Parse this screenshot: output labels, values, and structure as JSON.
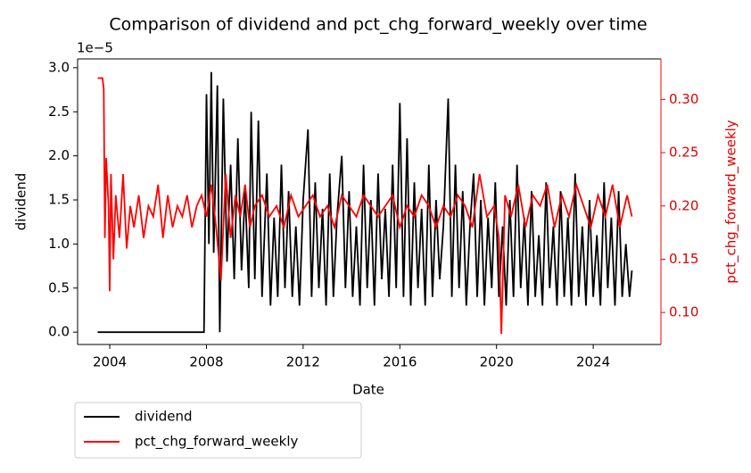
{
  "chart_data": {
    "type": "line",
    "title": "Comparison of dividend and pct_chg_forward_weekly over time",
    "x_label": "Date",
    "y_label": "dividend",
    "y2_label": "pct_chg_forward_weekly",
    "y_offset_label": "1e−5",
    "xlim": [
      2002.67,
      2026.8
    ],
    "ylim": [
      -0.14,
      3.1
    ],
    "y2lim": [
      0.07,
      0.338
    ],
    "xticks": [
      2004,
      2008,
      2012,
      2016,
      2020,
      2024
    ],
    "yticks": [
      {
        "value": 0,
        "label": "0.0"
      },
      {
        "value": 0.5,
        "label": "0.5"
      },
      {
        "value": 1,
        "label": "1.0"
      },
      {
        "value": 1.5,
        "label": "1.5"
      },
      {
        "value": 2,
        "label": "2.0"
      },
      {
        "value": 2.5,
        "label": "2.5"
      },
      {
        "value": 3,
        "label": "3.0"
      }
    ],
    "y2ticks": [
      {
        "value": 0.1,
        "label": "0.10"
      },
      {
        "value": 0.15,
        "label": "0.15"
      },
      {
        "value": 0.2,
        "label": "0.20"
      },
      {
        "value": 0.25,
        "label": "0.25"
      },
      {
        "value": 0.3,
        "label": "0.30"
      }
    ],
    "legend": "below-left",
    "series": [
      {
        "name": "dividend",
        "color": "#000000",
        "x": [
          2003.5,
          2007.9,
          2008.0,
          2008.1,
          2008.2,
          2008.3,
          2008.45,
          2008.55,
          2008.7,
          2008.85,
          2009.0,
          2009.15,
          2009.3,
          2009.45,
          2009.6,
          2009.75,
          2009.85,
          2010.0,
          2010.15,
          2010.3,
          2010.5,
          2010.65,
          2010.8,
          2010.95,
          2011.1,
          2011.25,
          2011.4,
          2011.55,
          2011.7,
          2011.85,
          2012.0,
          2012.2,
          2012.35,
          2012.5,
          2012.65,
          2012.8,
          2012.95,
          2013.1,
          2013.25,
          2013.4,
          2013.6,
          2013.75,
          2013.9,
          2014.05,
          2014.2,
          2014.35,
          2014.5,
          2014.65,
          2014.8,
          2014.95,
          2015.1,
          2015.25,
          2015.4,
          2015.55,
          2015.7,
          2015.85,
          2016.0,
          2016.15,
          2016.3,
          2016.45,
          2016.6,
          2016.75,
          2016.9,
          2017.05,
          2017.2,
          2017.35,
          2017.5,
          2017.65,
          2017.8,
          2018.0,
          2018.15,
          2018.3,
          2018.45,
          2018.6,
          2018.75,
          2018.9,
          2019.05,
          2019.2,
          2019.35,
          2019.5,
          2019.65,
          2019.8,
          2019.95,
          2020.1,
          2020.25,
          2020.4,
          2020.55,
          2020.7,
          2020.85,
          2021.0,
          2021.15,
          2021.3,
          2021.45,
          2021.6,
          2021.75,
          2021.9,
          2022.05,
          2022.2,
          2022.35,
          2022.5,
          2022.65,
          2022.8,
          2022.95,
          2023.1,
          2023.25,
          2023.4,
          2023.55,
          2023.7,
          2023.85,
          2024.0,
          2024.15,
          2024.3,
          2024.45,
          2024.6,
          2024.75,
          2024.9,
          2025.05,
          2025.2,
          2025.35,
          2025.5,
          2025.6
        ],
        "values": [
          0,
          0,
          2.7,
          1.0,
          2.95,
          0.9,
          2.8,
          0.0,
          2.65,
          0.8,
          1.9,
          0.6,
          2.2,
          0.7,
          1.6,
          0.5,
          2.5,
          0.6,
          2.4,
          0.4,
          1.8,
          0.3,
          1.3,
          0.4,
          1.9,
          0.5,
          1.6,
          0.4,
          1.2,
          0.3,
          1.5,
          2.3,
          0.4,
          1.7,
          0.5,
          1.4,
          0.3,
          1.8,
          0.4,
          1.3,
          2.0,
          0.5,
          1.6,
          0.4,
          1.2,
          0.3,
          1.9,
          0.5,
          1.5,
          0.3,
          1.8,
          0.6,
          1.4,
          0.4,
          1.9,
          0.5,
          2.6,
          0.4,
          2.2,
          0.3,
          1.7,
          0.5,
          1.4,
          0.3,
          1.9,
          0.4,
          1.5,
          0.6,
          1.2,
          2.65,
          0.4,
          1.9,
          0.5,
          1.6,
          0.3,
          1.2,
          1.8,
          0.4,
          1.5,
          0.3,
          1.3,
          0.5,
          1.7,
          0.4,
          1.2,
          0.3,
          1.5,
          0.4,
          1.9,
          0.5,
          1.3,
          0.3,
          1.6,
          0.4,
          1.1,
          0.3,
          1.7,
          0.5,
          1.2,
          0.3,
          1.6,
          0.4,
          1.3,
          0.3,
          1.8,
          0.4,
          1.2,
          0.3,
          1.5,
          0.4,
          1.1,
          0.3,
          1.7,
          0.5,
          1.3,
          0.3,
          1.6,
          0.4,
          1.0,
          0.4,
          0.7
        ]
      },
      {
        "name": "pct_chg_forward_weekly",
        "color": "#ff0000",
        "axis": "y2",
        "x": [
          2003.5,
          2003.7,
          2003.75,
          2003.8,
          2003.85,
          2003.95,
          2004.0,
          2004.05,
          2004.15,
          2004.25,
          2004.4,
          2004.55,
          2004.7,
          2004.85,
          2005.0,
          2005.2,
          2005.4,
          2005.6,
          2005.8,
          2006.0,
          2006.2,
          2006.4,
          2006.6,
          2006.8,
          2007.0,
          2007.2,
          2007.4,
          2007.6,
          2007.8,
          2008.0,
          2008.2,
          2008.4,
          2008.6,
          2008.8,
          2009.0,
          2009.2,
          2009.4,
          2009.6,
          2009.8,
          2010.0,
          2010.3,
          2010.6,
          2010.9,
          2011.2,
          2011.5,
          2011.8,
          2012.1,
          2012.4,
          2012.7,
          2013.0,
          2013.3,
          2013.6,
          2013.9,
          2014.2,
          2014.5,
          2014.8,
          2015.1,
          2015.4,
          2015.7,
          2016.0,
          2016.3,
          2016.6,
          2016.9,
          2017.2,
          2017.5,
          2017.8,
          2018.1,
          2018.4,
          2018.7,
          2019.0,
          2019.3,
          2019.6,
          2019.9,
          2020.1,
          2020.2,
          2020.35,
          2020.6,
          2020.9,
          2021.2,
          2021.5,
          2021.8,
          2022.1,
          2022.4,
          2022.7,
          2023.0,
          2023.3,
          2023.6,
          2023.9,
          2024.2,
          2024.5,
          2024.8,
          2025.1,
          2025.4,
          2025.6
        ],
        "values": [
          0.32,
          0.32,
          0.31,
          0.17,
          0.245,
          0.2,
          0.12,
          0.23,
          0.15,
          0.21,
          0.17,
          0.23,
          0.16,
          0.2,
          0.18,
          0.21,
          0.17,
          0.2,
          0.19,
          0.22,
          0.17,
          0.21,
          0.18,
          0.2,
          0.19,
          0.21,
          0.18,
          0.2,
          0.21,
          0.19,
          0.22,
          0.18,
          0.13,
          0.23,
          0.17,
          0.21,
          0.19,
          0.22,
          0.18,
          0.2,
          0.21,
          0.19,
          0.2,
          0.18,
          0.21,
          0.19,
          0.2,
          0.21,
          0.19,
          0.2,
          0.18,
          0.21,
          0.2,
          0.19,
          0.21,
          0.2,
          0.19,
          0.2,
          0.21,
          0.18,
          0.2,
          0.19,
          0.21,
          0.2,
          0.18,
          0.2,
          0.19,
          0.21,
          0.2,
          0.18,
          0.23,
          0.19,
          0.2,
          0.17,
          0.08,
          0.21,
          0.19,
          0.22,
          0.18,
          0.21,
          0.2,
          0.22,
          0.18,
          0.21,
          0.19,
          0.22,
          0.2,
          0.18,
          0.21,
          0.19,
          0.22,
          0.18,
          0.21,
          0.19
        ]
      }
    ]
  }
}
